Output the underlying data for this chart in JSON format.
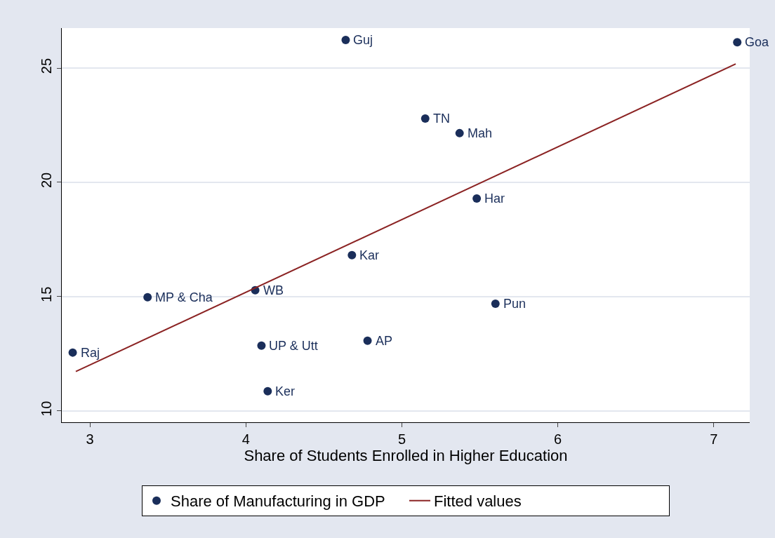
{
  "chart_data": {
    "type": "scatter",
    "xlabel": "Share of Students Enrolled in Higher Education",
    "xlim": [
      2.82,
      7.23
    ],
    "xticks": [
      3,
      4,
      5,
      6,
      7
    ],
    "ylim": [
      9.5,
      26.75
    ],
    "yticks": [
      10,
      15,
      20,
      25
    ],
    "grid": "y",
    "legend": "bottom",
    "marker": "circle",
    "series": [
      {
        "name": "Share of Manufacturing in GDP",
        "color": "#1a2e5a",
        "x": [
          2.89,
          3.37,
          4.06,
          4.1,
          4.14,
          4.64,
          4.68,
          4.78,
          5.15,
          5.37,
          5.48,
          5.6,
          7.15
        ],
        "values": [
          12.55,
          14.97,
          15.28,
          12.85,
          10.86,
          26.23,
          16.81,
          13.07,
          22.79,
          22.15,
          19.29,
          14.69,
          26.13
        ]
      },
      {
        "name": "Fitted values",
        "color": "#8b2323",
        "type": "line",
        "marker": "none",
        "line_style": "solid",
        "x": [
          2.91,
          7.14
        ],
        "values": [
          11.72,
          25.18
        ]
      }
    ],
    "annotations": [
      {
        "text": "Raj",
        "x": 2.89,
        "y": 12.55
      },
      {
        "text": "MP & Cha",
        "x": 3.37,
        "y": 14.97
      },
      {
        "text": "WB",
        "x": 4.06,
        "y": 15.28
      },
      {
        "text": "UP & Utt",
        "x": 4.1,
        "y": 12.85
      },
      {
        "text": "Ker",
        "x": 4.14,
        "y": 10.86
      },
      {
        "text": "Guj",
        "x": 4.64,
        "y": 26.23
      },
      {
        "text": "Kar",
        "x": 4.68,
        "y": 16.81
      },
      {
        "text": "AP",
        "x": 4.78,
        "y": 13.07
      },
      {
        "text": "TN",
        "x": 5.15,
        "y": 22.79
      },
      {
        "text": "Mah",
        "x": 5.37,
        "y": 22.15
      },
      {
        "text": "Har",
        "x": 5.48,
        "y": 19.29
      },
      {
        "text": "Pun",
        "x": 5.6,
        "y": 14.69
      },
      {
        "text": "Goa",
        "x": 7.15,
        "y": 26.13
      }
    ]
  }
}
